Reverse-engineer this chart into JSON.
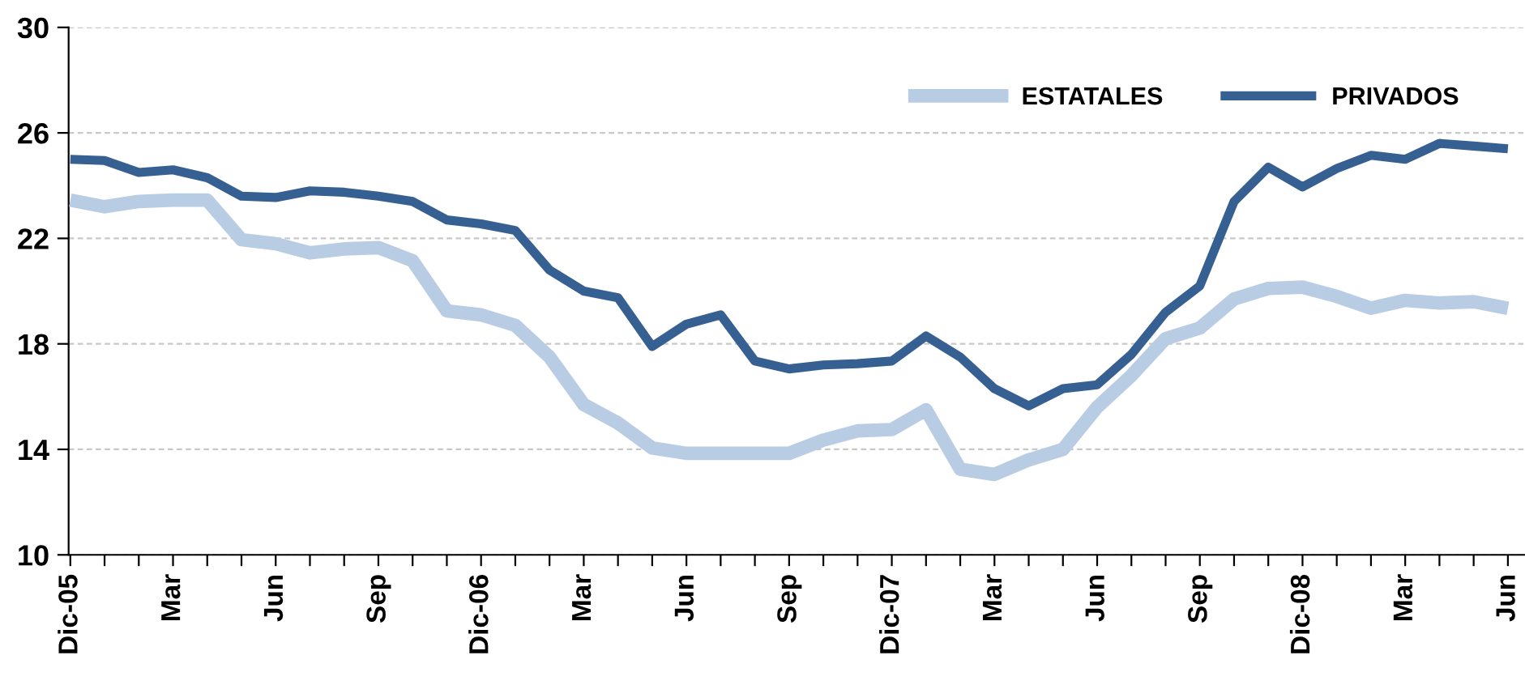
{
  "chart_data": {
    "type": "line",
    "categories": [
      "Dic-05",
      null,
      null,
      "Mar",
      null,
      null,
      "Jun",
      null,
      null,
      "Sep",
      null,
      null,
      "Dic-06",
      null,
      null,
      "Mar",
      null,
      null,
      "Jun",
      null,
      null,
      "Sep",
      null,
      null,
      "Dic-07",
      null,
      null,
      "Mar",
      null,
      null,
      "Jun",
      null,
      null,
      "Sep",
      null,
      null,
      "Dic-08",
      null,
      null,
      "Mar",
      null,
      null,
      "Jun"
    ],
    "series": [
      {
        "name": "ESTATALES",
        "color": "#b8cce4",
        "values": [
          23.45,
          23.2,
          23.4,
          23.45,
          23.45,
          21.95,
          21.8,
          21.45,
          21.6,
          21.65,
          21.15,
          19.25,
          19.1,
          18.7,
          17.5,
          15.7,
          15.0,
          14.05,
          13.85,
          13.85,
          13.85,
          13.85,
          14.35,
          14.7,
          14.75,
          15.5,
          13.25,
          13.05,
          13.6,
          14.0,
          15.6,
          16.8,
          18.2,
          18.6,
          19.7,
          20.1,
          20.15,
          19.8,
          19.35,
          19.65,
          19.55,
          19.6,
          19.35
        ]
      },
      {
        "name": "PRIVADOS",
        "color": "#376092",
        "values": [
          25.0,
          24.95,
          24.5,
          24.6,
          24.3,
          23.6,
          23.55,
          23.8,
          23.75,
          23.6,
          23.4,
          22.7,
          22.55,
          22.3,
          20.8,
          20.0,
          19.75,
          17.9,
          18.75,
          19.1,
          17.35,
          17.05,
          17.2,
          17.25,
          17.35,
          18.3,
          17.5,
          16.3,
          15.65,
          16.3,
          16.45,
          17.6,
          19.2,
          20.2,
          23.4,
          24.7,
          23.95,
          24.65,
          25.15,
          25.0,
          25.6,
          25.5,
          25.4
        ]
      }
    ],
    "ylim": [
      10,
      30
    ],
    "yticks": [
      10,
      14,
      18,
      22,
      26,
      30
    ],
    "grid": "y",
    "legend": "top right",
    "marker": "none",
    "line_style": "solid"
  }
}
